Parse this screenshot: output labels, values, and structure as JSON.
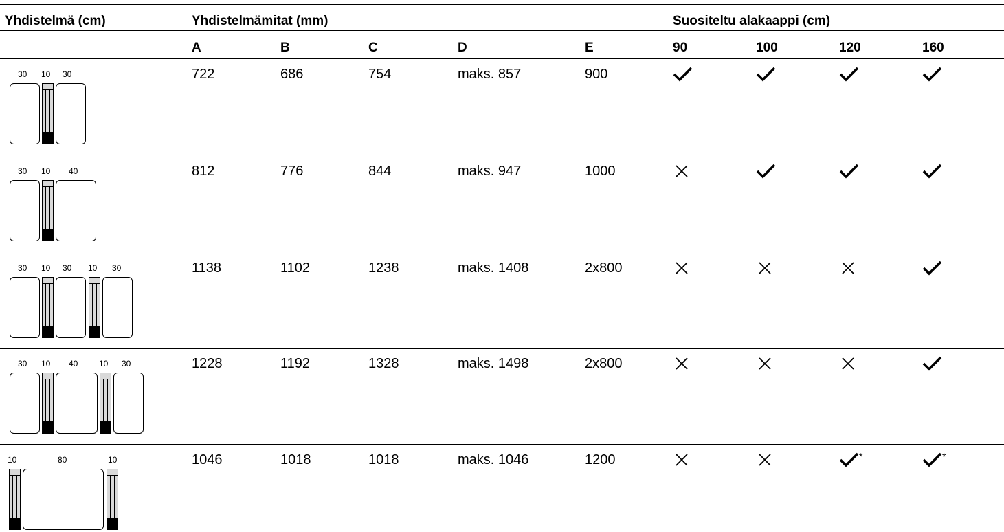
{
  "header": {
    "combo": "Yhdistelmä (cm)",
    "dims": "Yhdistelmämitat (mm)",
    "recommended": "Suositeltu alakaappi (cm)",
    "cols": [
      "A",
      "B",
      "C",
      "D",
      "E",
      "90",
      "100",
      "120",
      "160"
    ]
  },
  "rows": [
    {
      "labels": [
        "30",
        "10",
        "30"
      ],
      "a": "722",
      "b": "686",
      "c": "754",
      "d": "maks. 857",
      "e": "900",
      "marks": [
        "check",
        "check",
        "check",
        "check"
      ]
    },
    {
      "labels": [
        "30",
        "10",
        "40"
      ],
      "a": "812",
      "b": "776",
      "c": "844",
      "d": "maks. 947",
      "e": "1000",
      "marks": [
        "cross",
        "check",
        "check",
        "check"
      ]
    },
    {
      "labels": [
        "30",
        "10",
        "30",
        "10",
        "30"
      ],
      "a": "1138",
      "b": "1102",
      "c": "1238",
      "d": "maks. 1408",
      "e": "2x800",
      "marks": [
        "cross",
        "cross",
        "cross",
        "check"
      ]
    },
    {
      "labels": [
        "30",
        "10",
        "40",
        "10",
        "30"
      ],
      "a": "1228",
      "b": "1192",
      "c": "1328",
      "d": "maks. 1498",
      "e": "2x800",
      "marks": [
        "cross",
        "cross",
        "cross",
        "check"
      ]
    },
    {
      "labels": [
        "10",
        "80",
        "10"
      ],
      "a": "1046",
      "b": "1018",
      "c": "1018",
      "d": "maks. 1046",
      "e": "1200",
      "marks": [
        "cross",
        "cross",
        "check-asterisk",
        "check-asterisk"
      ]
    }
  ],
  "icons": {
    "check": "check-icon",
    "cross": "cross-icon",
    "asterisk": "*"
  }
}
